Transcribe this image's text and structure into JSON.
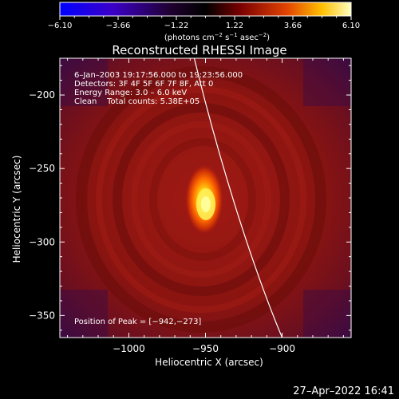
{
  "chart_data": {
    "type": "heatmap",
    "title": "Reconstructed RHESSI Image",
    "xlabel": "Heliocentric X (arcsec)",
    "ylabel": "Heliocentric Y (arcsec)",
    "xlim": [
      -1045,
      -855
    ],
    "ylim": [
      -365,
      -175
    ],
    "x_ticks": [
      -1000,
      -950,
      -900
    ],
    "x_tick_labels": [
      "−1000",
      "−950",
      "−900"
    ],
    "y_ticks": [
      -200,
      -250,
      -300,
      -350
    ],
    "y_tick_labels": [
      "−200",
      "−250",
      "−300",
      "−350"
    ],
    "colorbar": {
      "range": [
        -6.1,
        6.1
      ],
      "ticks": [
        -6.1,
        -3.66,
        -1.22,
        1.22,
        3.66,
        6.1
      ],
      "tick_labels": [
        "−6.10",
        "−3.66",
        "−1.22",
        "1.22",
        "3.66",
        "6.10"
      ],
      "label_main": "(photons cm",
      "label_sup1": "−2",
      "label_mid1": " s",
      "label_sup2": "−1",
      "label_mid2": " asec",
      "label_sup3": "−2",
      "label_end": ")",
      "colors": [
        "#0000ff",
        "#000000",
        "#8b0000",
        "#ff6a00",
        "#ffee55",
        "#ffffff"
      ]
    },
    "annotations": [
      "6–Jan–2003 19:17:56.000 to 19:23:56.000",
      "Detectors: 3F 4F 5F 6F 7F 8F, Att 0",
      "Energy Range: 3.0 – 6.0 keV",
      "Clean    Total counts: 5.38E+05"
    ],
    "peak_label": "Position of Peak = [−942,−273]",
    "peak": {
      "x": -942,
      "y": -273
    },
    "limb_curve": [
      [
        -958,
        -172
      ],
      [
        -940,
        -250
      ],
      [
        -918,
        -320
      ],
      [
        -900,
        -365
      ]
    ]
  },
  "footer": {
    "timestamp": "27–Apr–2022 16:41"
  }
}
